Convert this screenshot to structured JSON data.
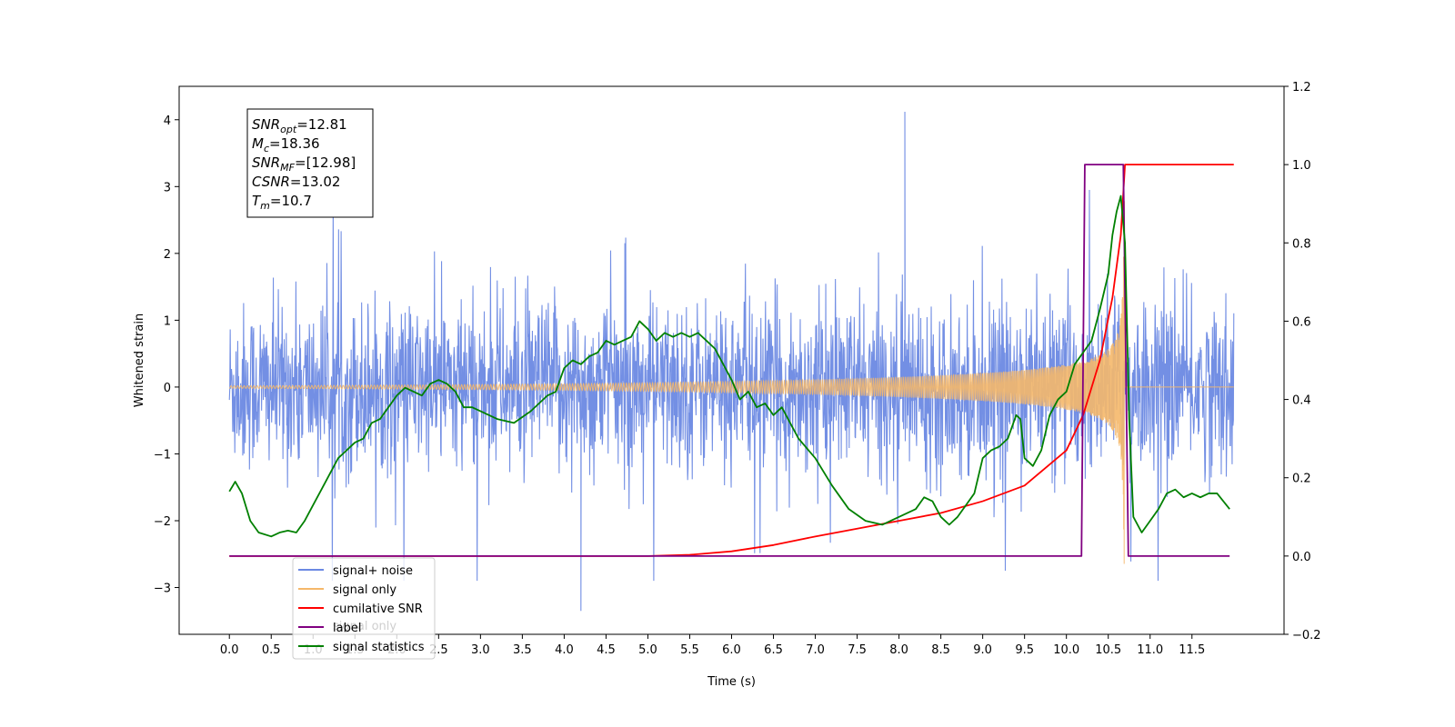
{
  "chart_data": {
    "type": "line",
    "xlabel": "Time (s)",
    "ylabel": "Whitened strain",
    "xlim": [
      -0.6,
      12.6
    ],
    "ylim_left": [
      -3.7,
      4.5
    ],
    "ylim_right": [
      -0.2,
      1.2
    ],
    "x_ticks": [
      0.0,
      0.5,
      1.0,
      1.5,
      2.0,
      2.5,
      3.0,
      3.5,
      4.0,
      4.5,
      5.0,
      5.5,
      6.0,
      6.5,
      7.0,
      7.5,
      8.0,
      8.5,
      9.0,
      9.5,
      10.0,
      10.5,
      11.0,
      11.5
    ],
    "x_tick_labels": [
      "0.0",
      "0.5",
      "1.0",
      "1.5",
      "2.0",
      "2.5",
      "3.0",
      "3.5",
      "4.0",
      "4.5",
      "5.0",
      "5.5",
      "6.0",
      "6.5",
      "7.0",
      "7.5",
      "8.0",
      "8.5",
      "9.0",
      "9.5",
      "10.0",
      "10.5",
      "11.0",
      "11.5"
    ],
    "y_left_ticks": [
      -3,
      -2,
      -1,
      0,
      1,
      2,
      3,
      4
    ],
    "y_left_tick_labels": [
      "−3",
      "−2",
      "−1",
      "0",
      "1",
      "2",
      "3",
      "4"
    ],
    "y_right_ticks": [
      -0.2,
      0.0,
      0.2,
      0.4,
      0.6,
      0.8,
      1.0,
      1.2
    ],
    "y_right_tick_labels": [
      "−0.2",
      "0.0",
      "0.2",
      "0.4",
      "0.6",
      "0.8",
      "1.0",
      "1.2"
    ],
    "grid": false,
    "legend_position": "lower-left",
    "series": [
      {
        "name": "signal+ noise",
        "axis": "left",
        "color": "#6b89e3",
        "kind": "noise",
        "x_range": [
          0.0,
          12.0
        ],
        "typical_amplitude": 1.2,
        "peak_max": 4.12,
        "peak_max_at": 8.07,
        "peak_min": -3.35,
        "peak_min_at": 4.2
      },
      {
        "name": "signal only",
        "axis": "left",
        "color": "#f5b86a",
        "kind": "chirp",
        "x_range": [
          0.0,
          12.0
        ],
        "merger_time": 10.7,
        "peak_amplitude": 2.9
      },
      {
        "name": "cumilative SNR",
        "axis": "right",
        "color": "#ff0000",
        "x": [
          0.0,
          5.0,
          5.5,
          6.0,
          6.5,
          7.0,
          7.5,
          8.0,
          8.5,
          9.0,
          9.5,
          10.0,
          10.2,
          10.4,
          10.55,
          10.65,
          10.7,
          12.0
        ],
        "values": [
          0.0,
          0.0,
          0.003,
          0.012,
          0.028,
          0.05,
          0.07,
          0.09,
          0.11,
          0.14,
          0.18,
          0.27,
          0.36,
          0.5,
          0.66,
          0.82,
          1.0,
          1.0
        ]
      },
      {
        "name": "label",
        "axis": "right",
        "color": "#800080",
        "x": [
          0.0,
          10.18,
          10.22,
          10.68,
          10.74,
          11.95
        ],
        "values": [
          0.0,
          0.0,
          1.0,
          1.0,
          0.0,
          0.0
        ]
      },
      {
        "name": "signal statistics",
        "axis": "right",
        "color": "#008000",
        "x": [
          0.0,
          0.07,
          0.15,
          0.25,
          0.35,
          0.5,
          0.6,
          0.7,
          0.8,
          0.9,
          1.0,
          1.1,
          1.2,
          1.3,
          1.4,
          1.5,
          1.6,
          1.7,
          1.8,
          1.9,
          2.0,
          2.1,
          2.2,
          2.3,
          2.4,
          2.5,
          2.6,
          2.7,
          2.8,
          2.9,
          3.0,
          3.2,
          3.4,
          3.6,
          3.8,
          3.9,
          4.0,
          4.1,
          4.2,
          4.3,
          4.4,
          4.5,
          4.6,
          4.7,
          4.8,
          4.9,
          5.0,
          5.1,
          5.2,
          5.3,
          5.4,
          5.5,
          5.6,
          5.7,
          5.8,
          5.9,
          6.0,
          6.1,
          6.2,
          6.3,
          6.4,
          6.5,
          6.6,
          6.8,
          7.0,
          7.2,
          7.4,
          7.6,
          7.8,
          8.0,
          8.2,
          8.3,
          8.4,
          8.5,
          8.6,
          8.7,
          8.8,
          8.9,
          9.0,
          9.1,
          9.2,
          9.3,
          9.4,
          9.45,
          9.5,
          9.6,
          9.7,
          9.8,
          9.9,
          10.0,
          10.1,
          10.2,
          10.3,
          10.4,
          10.5,
          10.55,
          10.6,
          10.65,
          10.7,
          10.75,
          10.8,
          10.9,
          11.0,
          11.1,
          11.2,
          11.3,
          11.4,
          11.5,
          11.6,
          11.7,
          11.8,
          11.95
        ],
        "values": [
          0.165,
          0.19,
          0.16,
          0.09,
          0.06,
          0.05,
          0.06,
          0.065,
          0.06,
          0.09,
          0.13,
          0.17,
          0.21,
          0.25,
          0.27,
          0.29,
          0.3,
          0.34,
          0.35,
          0.38,
          0.41,
          0.43,
          0.42,
          0.41,
          0.44,
          0.45,
          0.44,
          0.42,
          0.38,
          0.38,
          0.37,
          0.35,
          0.34,
          0.37,
          0.41,
          0.42,
          0.48,
          0.5,
          0.49,
          0.51,
          0.52,
          0.55,
          0.54,
          0.55,
          0.56,
          0.6,
          0.58,
          0.55,
          0.57,
          0.56,
          0.57,
          0.56,
          0.57,
          0.55,
          0.53,
          0.49,
          0.45,
          0.4,
          0.42,
          0.38,
          0.39,
          0.36,
          0.38,
          0.3,
          0.25,
          0.18,
          0.12,
          0.09,
          0.08,
          0.1,
          0.12,
          0.15,
          0.14,
          0.1,
          0.08,
          0.1,
          0.13,
          0.16,
          0.25,
          0.27,
          0.28,
          0.3,
          0.36,
          0.35,
          0.25,
          0.23,
          0.27,
          0.36,
          0.4,
          0.42,
          0.49,
          0.52,
          0.55,
          0.63,
          0.72,
          0.82,
          0.88,
          0.92,
          0.8,
          0.35,
          0.1,
          0.06,
          0.09,
          0.12,
          0.16,
          0.17,
          0.15,
          0.16,
          0.15,
          0.16,
          0.16,
          0.12
        ]
      }
    ],
    "legend_entries": [
      {
        "label": "signal+ noise",
        "color": "#6b89e3"
      },
      {
        "label": "signal only",
        "color": "#f5b86a"
      },
      {
        "label": "cumilative SNR",
        "color": "#ff0000"
      },
      {
        "label": "label",
        "color": "#800080"
      },
      {
        "label": "signal statistics",
        "color": "#008000"
      }
    ],
    "legend_ghost_text": "signal only",
    "info_box": [
      {
        "main": "SNR",
        "sub": "opt",
        "value": "=12.81"
      },
      {
        "main": "M",
        "sub": "c",
        "value": "=18.36"
      },
      {
        "main": "SNR",
        "sub": "MF",
        "value": "=[12.98]"
      },
      {
        "main": "CSNR",
        "sub": "",
        "value": "=13.02"
      },
      {
        "main": "T",
        "sub": "m",
        "value": "=10.7"
      }
    ]
  }
}
